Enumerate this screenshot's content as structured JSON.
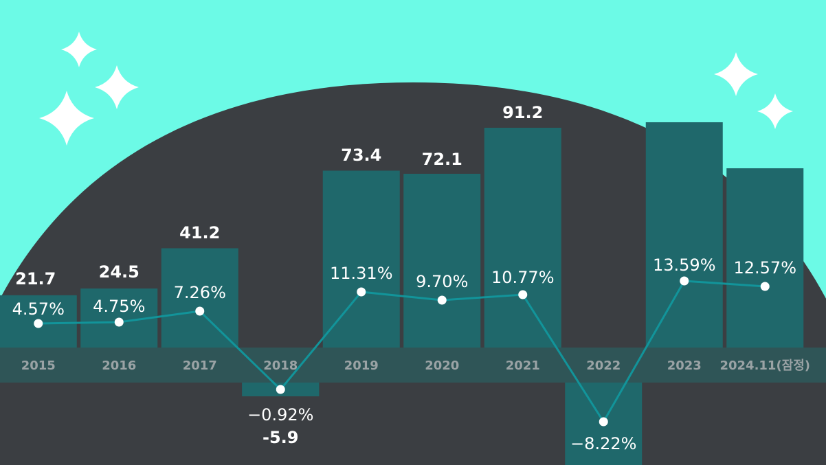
{
  "colors": {
    "background": "#6cfae6",
    "dome": "#3b3e42",
    "bar": "#1f686b",
    "axis_band": "#2f5557",
    "line": "#12949a",
    "marker": "#ffffff"
  },
  "chart_data": {
    "type": "bar",
    "title": "",
    "xlabel": "",
    "ylabel": "",
    "categories": [
      "2015",
      "2016",
      "2017",
      "2018",
      "2019",
      "2020",
      "2021",
      "2022",
      "2023",
      "2024.11(잠정)"
    ],
    "series": [
      {
        "type": "bar",
        "values": [
          21.7,
          24.5,
          41.2,
          -5.9,
          73.4,
          72.1,
          91.2,
          null,
          null,
          null
        ],
        "labels": [
          "21.7",
          "24.5",
          "41.2",
          "-5.9",
          "73.4",
          "72.1",
          "91.2",
          "",
          "",
          ""
        ]
      },
      {
        "type": "line",
        "values": [
          4.57,
          4.75,
          7.26,
          -0.92,
          11.31,
          9.7,
          10.77,
          -8.22,
          13.59,
          12.57
        ],
        "labels": [
          "4.57%",
          "4.75%",
          "7.26%",
          "−0.92%",
          "11.31%",
          "9.70%",
          "10.77%",
          "−8.22%",
          "13.59%",
          "12.57%"
        ]
      }
    ],
    "grid": false,
    "legend": "none"
  }
}
